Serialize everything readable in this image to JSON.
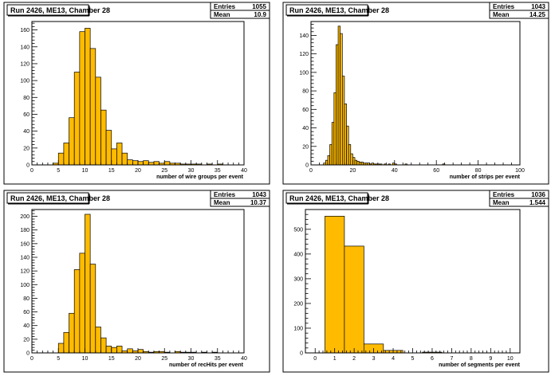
{
  "chart_data": [
    {
      "type": "bar",
      "title": "Run 2426, ME13, Chamber 28",
      "xlabel": "number of wire groups per event",
      "ylabel": "",
      "stats": {
        "entries_label": "Entries",
        "entries": "1055",
        "mean_label": "Mean",
        "mean": "10.9"
      },
      "xlim": [
        0,
        40
      ],
      "ylim": [
        0,
        170
      ],
      "bin_width": 1,
      "x_ticks": [
        "0",
        "5",
        "10",
        "15",
        "20",
        "25",
        "30",
        "35",
        "40"
      ],
      "y_ticks": [
        "0",
        "20",
        "40",
        "60",
        "80",
        "100",
        "120",
        "140",
        "160"
      ],
      "bins_start": 0,
      "values": [
        0,
        0,
        0,
        0,
        2,
        14,
        26,
        56,
        110,
        158,
        162,
        138,
        104,
        65,
        41,
        19,
        26,
        14,
        6,
        5,
        4,
        5,
        3,
        4,
        2,
        4,
        2,
        2,
        1,
        1,
        1,
        1,
        0,
        1,
        0,
        1,
        0,
        0,
        0,
        0
      ]
    },
    {
      "type": "bar",
      "title": "Run 2426, ME13, Chamber 28",
      "xlabel": "number of strips per event",
      "ylabel": "",
      "stats": {
        "entries_label": "Entries",
        "entries": "1043",
        "mean_label": "Mean",
        "mean": "14.25"
      },
      "xlim": [
        0,
        100
      ],
      "ylim": [
        0,
        155
      ],
      "bin_width": 1,
      "x_ticks": [
        "0",
        "20",
        "40",
        "60",
        "80",
        "100"
      ],
      "y_ticks": [
        "0",
        "20",
        "40",
        "60",
        "80",
        "100",
        "120",
        "140"
      ],
      "bins_start": 0,
      "values": [
        0,
        0,
        0,
        0,
        0,
        0,
        2,
        5,
        10,
        22,
        46,
        78,
        130,
        150,
        142,
        96,
        66,
        42,
        22,
        12,
        8,
        5,
        4,
        3,
        3,
        2,
        2,
        2,
        1,
        2,
        1,
        1,
        1,
        1,
        0,
        1,
        0,
        1,
        0,
        2,
        1,
        0,
        0,
        0,
        0,
        1,
        0,
        0,
        0,
        0,
        0,
        0,
        0,
        0,
        0,
        0,
        0,
        0,
        0,
        0,
        0,
        0,
        0,
        1,
        0,
        0,
        0,
        0,
        0,
        0,
        0,
        0,
        0,
        0,
        0,
        0,
        0,
        0,
        0,
        0,
        0,
        0,
        0,
        0,
        0,
        0,
        0,
        0,
        0,
        0,
        0,
        0,
        0,
        0,
        0,
        0,
        0,
        0,
        0,
        0
      ]
    },
    {
      "type": "bar",
      "title": "Run 2426, ME13, Chamber 28",
      "xlabel": "number of recHits per event",
      "ylabel": "",
      "stats": {
        "entries_label": "Entries",
        "entries": "1043",
        "mean_label": "Mean",
        "mean": "10.37"
      },
      "xlim": [
        0,
        40
      ],
      "ylim": [
        0,
        210
      ],
      "bin_width": 1,
      "x_ticks": [
        "0",
        "5",
        "10",
        "15",
        "20",
        "25",
        "30",
        "35",
        "40"
      ],
      "y_ticks": [
        "0",
        "20",
        "40",
        "60",
        "80",
        "100",
        "120",
        "140",
        "160",
        "180",
        "200"
      ],
      "bins_start": 0,
      "values": [
        0,
        0,
        0,
        0,
        0,
        14,
        30,
        58,
        122,
        146,
        203,
        130,
        38,
        22,
        10,
        8,
        10,
        3,
        6,
        3,
        5,
        2,
        1,
        2,
        2,
        1,
        0,
        2,
        1,
        1,
        1,
        0,
        1,
        0,
        1,
        0,
        0,
        0,
        0,
        0
      ]
    },
    {
      "type": "bar",
      "title": "Run 2426, ME13, Chamber 28",
      "xlabel": "number of segments per event",
      "ylabel": "",
      "stats": {
        "entries_label": "Entries",
        "entries": "1036",
        "mean_label": "Mean",
        "mean": "1.544"
      },
      "xlim": [
        -0.5,
        10.5
      ],
      "ylim": [
        0,
        580
      ],
      "bin_width": 1,
      "x_ticks": [
        "0",
        "1",
        "2",
        "3",
        "4",
        "5",
        "6",
        "7",
        "8",
        "9",
        "10"
      ],
      "y_ticks": [
        "0",
        "100",
        "200",
        "300",
        "400",
        "500"
      ],
      "bins_start": -0.5,
      "values": [
        0,
        553,
        432,
        36,
        10,
        0,
        3,
        0,
        0,
        0,
        0
      ]
    }
  ],
  "colors": {
    "fill": "#ffbb00",
    "edge": "#000000",
    "frame": "#000000",
    "background": "#ffffff"
  }
}
